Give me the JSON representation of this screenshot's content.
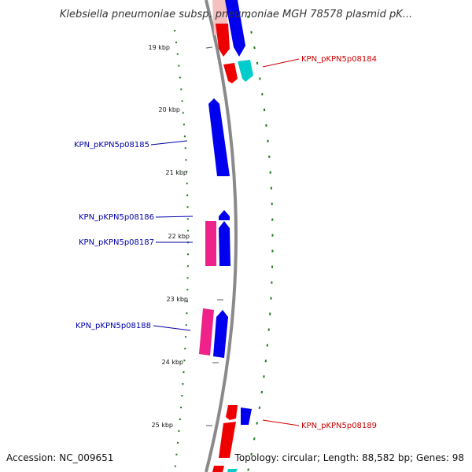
{
  "title": "Klebsiella pneumoniae subsp. pneumoniae MGH 78578 plasmid pK...",
  "footer": {
    "accession": "Accession: NC_009651",
    "topology": "Topology: circular; Length: 88,582 bp; Genes: 98"
  },
  "ticks": [
    "19 kbp",
    "20 kbp",
    "21 kbp",
    "22 kbp",
    "23 kbp",
    "24 kbp",
    "25 kbp"
  ],
  "gene_labels": [
    {
      "text": "KPN_pKPN5p08184",
      "color": "#cc0000"
    },
    {
      "text": "KPN_pKPN5p08185",
      "color": "#0000aa"
    },
    {
      "text": "KPN_pKPN5p08186",
      "color": "#0000aa"
    },
    {
      "text": "KPN_pKPN5p08187",
      "color": "#0000aa"
    },
    {
      "text": "KPN_pKPN5p08188",
      "color": "#0000aa"
    },
    {
      "text": "KPN_pKPN5p08189",
      "color": "#cc0000"
    }
  ],
  "colors": {
    "backbone": "#8a8a8a",
    "gc_dots": "#1a7a1a",
    "forward": "#0000ee",
    "reverse": "#ee0000",
    "pink": "#ee2288",
    "cyan": "#00cccc",
    "pale": "#f4c0c0"
  }
}
